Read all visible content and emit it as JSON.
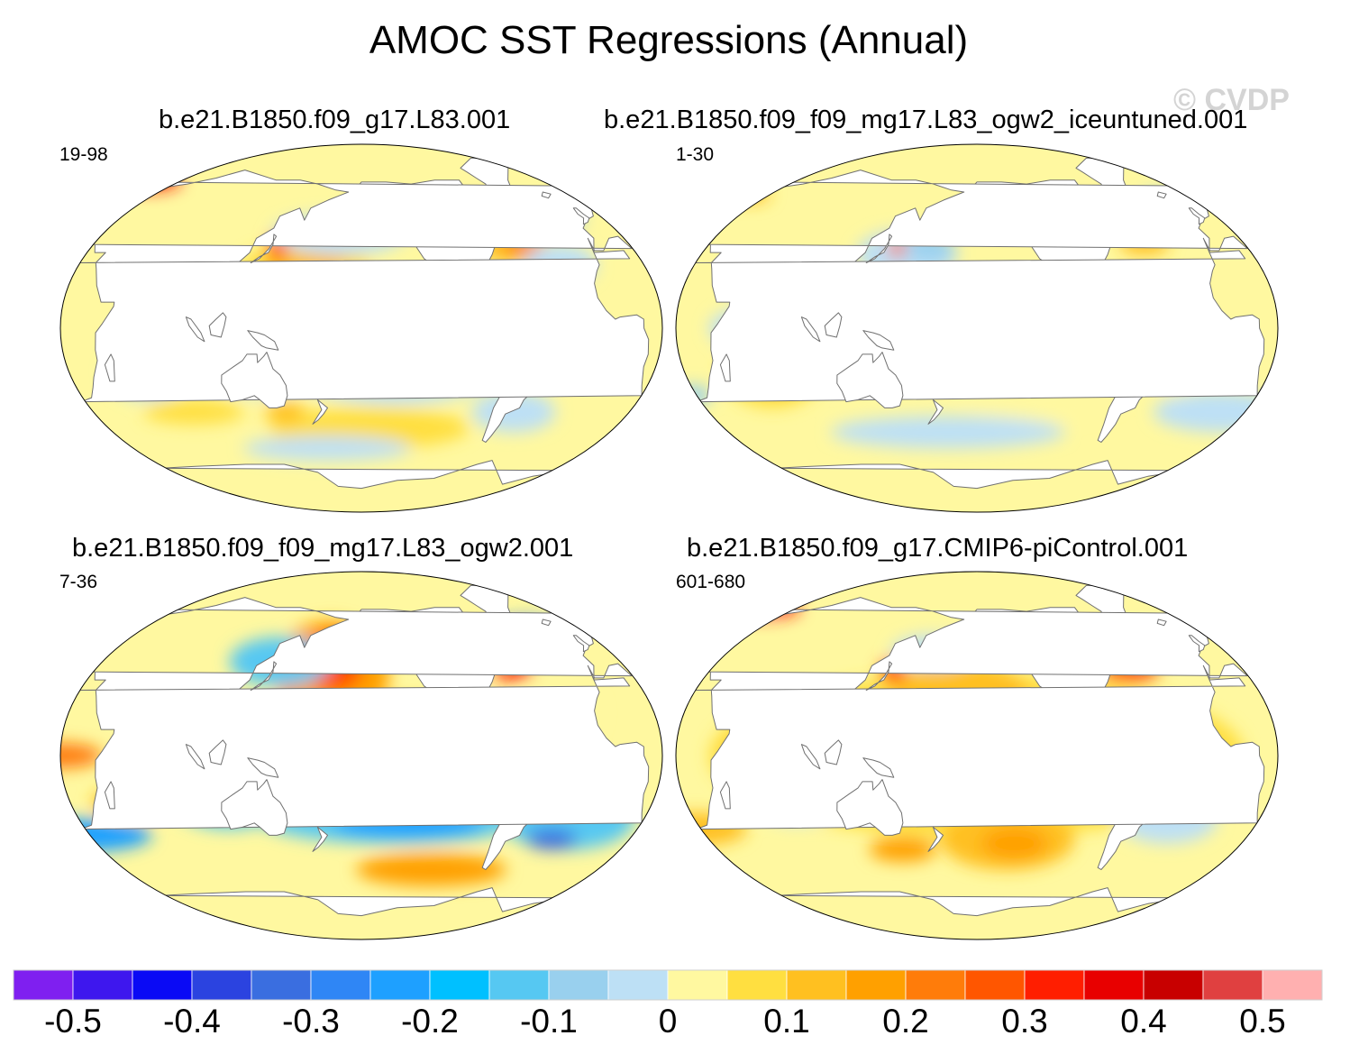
{
  "title": "AMOC SST Regressions (Annual)",
  "watermark": "© CVDP",
  "panels": [
    {
      "title": "b.e21.B1850.f09_g17.L83.001",
      "years": "19-98",
      "pattern": "mixed-warm-north"
    },
    {
      "title": "b.e21.B1850.f09_f09_mg17.L83_ogw2_iceuntuned.001",
      "years": "1-30",
      "pattern": "mixed-cool"
    },
    {
      "title": "b.e21.B1850.f09_f09_mg17.L83_ogw2.001",
      "years": "7-36",
      "pattern": "strong-pacific-warm"
    },
    {
      "title": "b.e21.B1850.f09_g17.CMIP6-piControl.001",
      "years": "601-680",
      "pattern": "warm"
    }
  ],
  "colorbar": {
    "colors": [
      "#7f1ff0",
      "#3e17ee",
      "#0a0af5",
      "#2b43e0",
      "#3a6ee0",
      "#2f86f5",
      "#1ea0ff",
      "#00c0ff",
      "#56c8f2",
      "#99d0ee",
      "#bde0f5",
      "#fff8a0",
      "#ffdf40",
      "#ffc020",
      "#ffa000",
      "#ff7c0a",
      "#ff5600",
      "#ff1e00",
      "#e80000",
      "#c80000",
      "#e04040",
      "#ffb0b0"
    ],
    "labels": [
      "-0.5",
      "-0.4",
      "-0.3",
      "-0.2",
      "-0.1",
      "0",
      "0.1",
      "0.2",
      "0.3",
      "0.4",
      "0.5"
    ],
    "min": -0.55,
    "max": 0.55
  }
}
